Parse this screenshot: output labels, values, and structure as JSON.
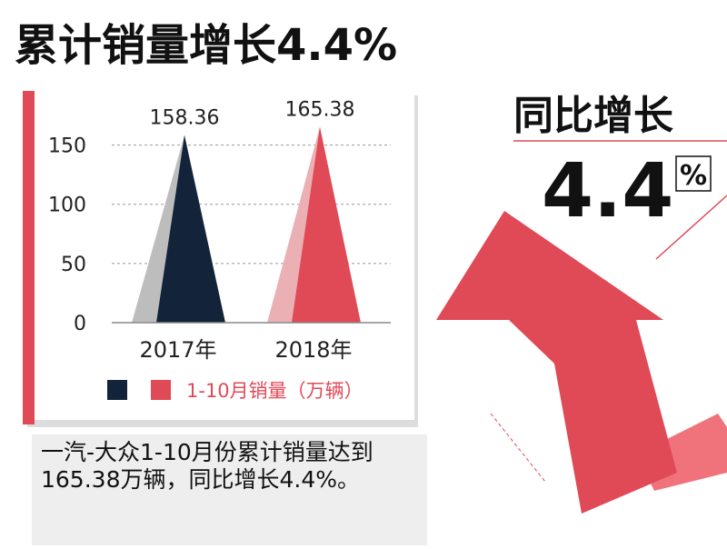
{
  "chart_data": {
    "type": "bar",
    "title": "累计销量增长4.4%",
    "side_heading": "同比增长",
    "side_number": "4.4",
    "side_unit": "%",
    "categories": [
      "2017年",
      "2018年"
    ],
    "values": [
      158.36,
      165.38
    ],
    "colors": [
      "#13243a",
      "#e04a57"
    ],
    "legend_label": "1-10月销量（万辆）",
    "ylim": [
      0,
      175
    ],
    "yticks": [
      0,
      50,
      100,
      150
    ],
    "grid": true,
    "caption": "一汽-大众1-10月份累计销量达到165.38万辆，同比增长4.4%。"
  }
}
